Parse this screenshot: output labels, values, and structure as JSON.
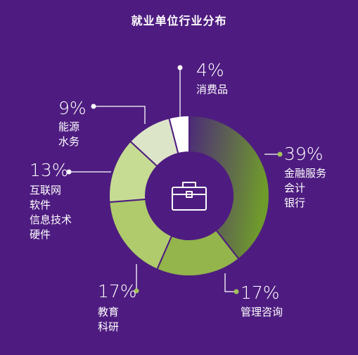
{
  "title": "就业单位行业分布",
  "icon": "briefcase-icon",
  "chart_data": {
    "type": "pie",
    "title": "就业单位行业分布",
    "slices": [
      {
        "label": "金融服务 会计 银行",
        "value": 39,
        "display": "39%",
        "lines": [
          "金融服务",
          "会计",
          "银行"
        ],
        "color": "#6f9a2c",
        "gradient_from": "#4b2a78"
      },
      {
        "label": "管理咨询",
        "value": 17,
        "display": "17%",
        "lines": [
          "管理咨询"
        ],
        "color": "#93b54b"
      },
      {
        "label": "教育 科研",
        "value": 17,
        "display": "17%",
        "lines": [
          "教育",
          "科研"
        ],
        "color": "#afcb6b"
      },
      {
        "label": "互联网 软件 信息技术 硬件",
        "value": 13,
        "display": "13%",
        "lines": [
          "互联网",
          "软件",
          "信息技术",
          "硬件"
        ],
        "color": "#c6dc93"
      },
      {
        "label": "能源 水务",
        "value": 9,
        "display": "9%",
        "lines": [
          "能源",
          "水务"
        ],
        "color": "#dde5c9"
      },
      {
        "label": "消费品",
        "value": 4,
        "display": "4%",
        "lines": [
          "消费品"
        ],
        "color": "#ffffff"
      }
    ]
  }
}
